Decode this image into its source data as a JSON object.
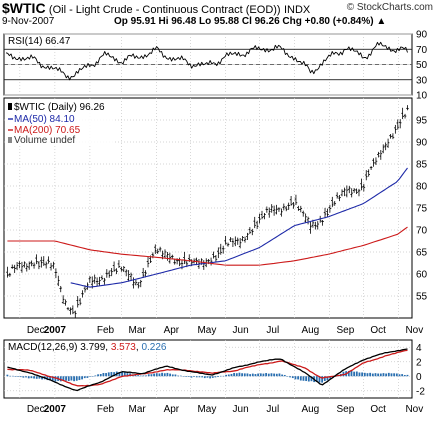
{
  "header": {
    "symbol": "$WTIC",
    "description": "(Oil - Light Crude - Continuous Contract (EOD))",
    "exchange": "INDX",
    "brand": "© StockCharts.com",
    "date": "9-Nov-2007",
    "quote": "Op 95.91  Hi 96.48  Lo 95.88  Cl 96.26  Chg +0.80 (+0.84%) ▲"
  },
  "colors": {
    "price": "#000000",
    "ma50": "#1e2aa8",
    "ma200": "#cc1a1a",
    "rsi": "#000000",
    "macd": "#000000",
    "signal": "#cc1a1a",
    "hist": "#2a6fb0",
    "grid": "#c8c8c8"
  },
  "chart_data": [
    {
      "type": "line",
      "panel": "RSI",
      "legend": [
        "RSI(14) 66.47"
      ],
      "ylim": [
        10,
        90
      ],
      "yticks": [
        10,
        30,
        50,
        70,
        90
      ],
      "reference_lines": [
        30,
        70
      ],
      "series": [
        {
          "name": "RSI(14) 66.47",
          "x": [
            "2006-12-01",
            "2006-12-15",
            "2007-01-05",
            "2007-01-18",
            "2007-02-01",
            "2007-02-15",
            "2007-03-01",
            "2007-03-15",
            "2007-04-01",
            "2007-04-15",
            "2007-05-01",
            "2007-05-15",
            "2007-06-01",
            "2007-06-15",
            "2007-07-01",
            "2007-07-15",
            "2007-08-01",
            "2007-08-15",
            "2007-08-31",
            "2007-09-15",
            "2007-10-01",
            "2007-10-15",
            "2007-10-31",
            "2007-11-09"
          ],
          "values": [
            60,
            55,
            40,
            35,
            50,
            62,
            55,
            60,
            68,
            58,
            52,
            48,
            60,
            65,
            70,
            72,
            60,
            40,
            58,
            72,
            60,
            75,
            70,
            66.47
          ]
        }
      ]
    },
    {
      "type": "line",
      "panel": "Price",
      "legend": [
        "$WTIC (Daily) 96.26",
        "MA(50) 84.10",
        "MA(200) 70.65",
        "Volume undef"
      ],
      "ylim": [
        50,
        100
      ],
      "yticks": [
        55,
        60,
        65,
        70,
        75,
        80,
        85,
        90,
        95
      ],
      "xticks": [
        "Dec",
        "2007",
        "Feb",
        "Mar",
        "Apr",
        "May",
        "Jun",
        "Jul",
        "Aug",
        "Sep",
        "Oct",
        "Nov"
      ],
      "series": [
        {
          "name": "$WTIC (Daily) 96.26",
          "x": [
            "2006-11-20",
            "2006-12-01",
            "2006-12-15",
            "2007-01-01",
            "2007-01-10",
            "2007-01-18",
            "2007-02-01",
            "2007-02-15",
            "2007-03-01",
            "2007-03-15",
            "2007-04-01",
            "2007-04-15",
            "2007-05-01",
            "2007-05-15",
            "2007-06-01",
            "2007-06-15",
            "2007-07-01",
            "2007-07-15",
            "2007-08-01",
            "2007-08-15",
            "2007-08-31",
            "2007-09-15",
            "2007-10-01",
            "2007-10-15",
            "2007-10-31",
            "2007-11-09"
          ],
          "values": [
            59,
            62,
            63,
            61,
            54,
            51,
            58,
            60,
            61,
            58,
            65,
            64,
            62,
            63,
            66,
            68,
            72,
            75,
            76,
            71,
            74,
            79,
            80,
            87,
            94,
            96.26
          ]
        },
        {
          "name": "MA(50) 84.10",
          "x": [
            "2007-01-15",
            "2007-02-01",
            "2007-03-01",
            "2007-04-01",
            "2007-05-01",
            "2007-06-01",
            "2007-07-01",
            "2007-08-01",
            "2007-08-31",
            "2007-10-01",
            "2007-10-31",
            "2007-11-09"
          ],
          "values": [
            58,
            57,
            58,
            60,
            62,
            63,
            66,
            71,
            73,
            76,
            81,
            84.1
          ]
        },
        {
          "name": "MA(200) 70.65",
          "x": [
            "2006-11-20",
            "2007-01-01",
            "2007-02-01",
            "2007-03-01",
            "2007-04-01",
            "2007-05-01",
            "2007-06-01",
            "2007-07-01",
            "2007-08-01",
            "2007-08-31",
            "2007-10-01",
            "2007-10-31",
            "2007-11-09"
          ],
          "values": [
            67.5,
            67.5,
            65.5,
            64.5,
            63.8,
            63,
            62,
            62,
            63,
            64.5,
            66.5,
            69,
            70.65
          ]
        }
      ]
    },
    {
      "type": "line",
      "panel": "MACD",
      "legend": [
        "MACD(12,26,9)",
        "3.799",
        "3.573",
        "0.226"
      ],
      "ylim": [
        -3,
        5
      ],
      "yticks": [
        -2,
        0,
        2,
        4
      ],
      "xticks": [
        "Dec",
        "2007",
        "Feb",
        "Mar",
        "Apr",
        "May",
        "Jun",
        "Jul",
        "Aug",
        "Sep",
        "Oct",
        "Nov"
      ],
      "series": [
        {
          "name": "3.799",
          "x": [
            "2006-11-20",
            "2006-12-10",
            "2007-01-01",
            "2007-01-20",
            "2007-02-10",
            "2007-03-01",
            "2007-03-20",
            "2007-04-10",
            "2007-05-01",
            "2007-05-20",
            "2007-06-10",
            "2007-07-01",
            "2007-07-20",
            "2007-08-10",
            "2007-08-25",
            "2007-09-15",
            "2007-10-01",
            "2007-10-20",
            "2007-11-09"
          ],
          "values": [
            1.2,
            0.5,
            -0.8,
            -2.0,
            -0.8,
            0.6,
            0.4,
            1.4,
            0.6,
            0.2,
            1.2,
            2.0,
            2.4,
            0.5,
            -1.2,
            1.0,
            2.3,
            3.2,
            3.799
          ]
        },
        {
          "name": "3.573",
          "x": [
            "2006-11-20",
            "2006-12-10",
            "2007-01-01",
            "2007-01-20",
            "2007-02-10",
            "2007-03-01",
            "2007-03-20",
            "2007-04-10",
            "2007-05-01",
            "2007-05-20",
            "2007-06-10",
            "2007-07-01",
            "2007-07-20",
            "2007-08-10",
            "2007-08-25",
            "2007-09-15",
            "2007-10-01",
            "2007-10-20",
            "2007-11-09"
          ],
          "values": [
            1.0,
            0.8,
            -0.2,
            -1.3,
            -1.2,
            0.0,
            0.3,
            0.9,
            0.8,
            0.4,
            0.8,
            1.6,
            2.1,
            1.2,
            -0.3,
            0.3,
            1.8,
            2.8,
            3.573
          ]
        },
        {
          "name": "0.226",
          "x": [
            "2006-11-20",
            "2006-12-10",
            "2007-01-01",
            "2007-01-20",
            "2007-02-10",
            "2007-03-01",
            "2007-03-20",
            "2007-04-10",
            "2007-05-01",
            "2007-05-20",
            "2007-06-10",
            "2007-07-01",
            "2007-07-20",
            "2007-08-10",
            "2007-08-25",
            "2007-09-15",
            "2007-10-01",
            "2007-10-20",
            "2007-11-09"
          ],
          "values": [
            0.2,
            -0.3,
            -0.6,
            -0.7,
            0.4,
            0.6,
            0.1,
            0.5,
            -0.2,
            -0.2,
            0.4,
            0.4,
            0.3,
            -0.7,
            -0.9,
            0.7,
            0.5,
            0.4,
            0.226
          ]
        }
      ]
    }
  ]
}
